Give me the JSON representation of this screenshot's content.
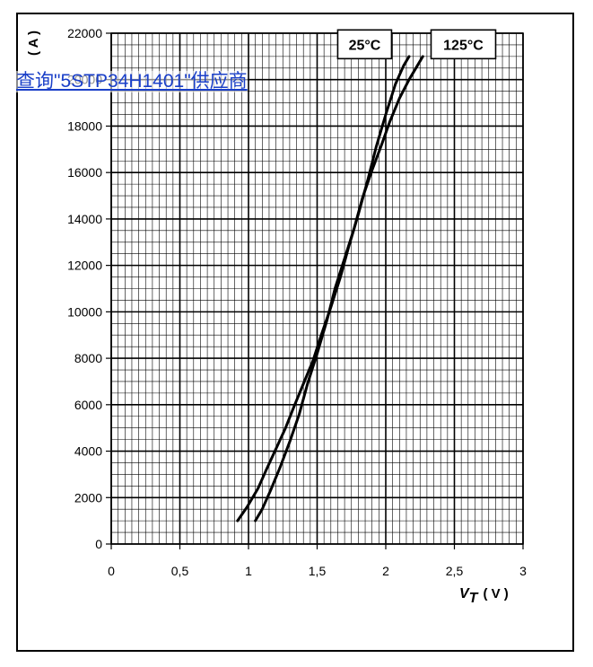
{
  "overlay": {
    "link_text": "查询\"5STP34H1401\"供应商"
  },
  "chart_data": {
    "type": "line",
    "title": "",
    "xlabel_main": "V",
    "xlabel_sub": "T",
    "xlabel_unit": "( V )",
    "ylabel": "( A )",
    "xlim": [
      0,
      3
    ],
    "ylim": [
      0,
      22000
    ],
    "xticks": [
      "0",
      "0,5",
      "1",
      "1,5",
      "2",
      "2,5",
      "3"
    ],
    "xtick_values": [
      0,
      0.5,
      1,
      1.5,
      2,
      2.5,
      3
    ],
    "yticks": [
      "0",
      "2000",
      "4000",
      "6000",
      "8000",
      "10000",
      "12000",
      "14000",
      "16000",
      "18000",
      "20000",
      "22000"
    ],
    "ytick_values": [
      0,
      2000,
      4000,
      6000,
      8000,
      10000,
      12000,
      14000,
      16000,
      18000,
      20000,
      22000
    ],
    "grid": true,
    "series": [
      {
        "name": "25°C",
        "color": "#000000",
        "x": [
          0.92,
          0.99,
          1.07,
          1.13,
          1.2,
          1.27,
          1.33,
          1.4,
          1.47,
          1.53,
          1.6,
          1.67,
          1.73,
          1.8,
          1.87,
          1.93,
          2.0,
          2.07,
          2.13,
          2.17
        ],
        "y": [
          1000,
          1600,
          2400,
          3200,
          4100,
          5000,
          5900,
          6900,
          7900,
          9000,
          10200,
          11500,
          12800,
          14200,
          15700,
          17100,
          18500,
          19800,
          20600,
          21000
        ]
      },
      {
        "name": "125°C",
        "color": "#000000",
        "x": [
          1.05,
          1.1,
          1.16,
          1.23,
          1.3,
          1.37,
          1.43,
          1.5,
          1.57,
          1.63,
          1.7,
          1.77,
          1.83,
          1.9,
          1.97,
          2.03,
          2.1,
          2.17,
          2.23,
          2.27
        ],
        "y": [
          1000,
          1500,
          2300,
          3300,
          4400,
          5600,
          6900,
          8200,
          9600,
          11000,
          12300,
          13600,
          14900,
          16100,
          17200,
          18200,
          19200,
          20000,
          20600,
          21000
        ]
      }
    ],
    "labels": [
      {
        "text": "25°C",
        "series": 0
      },
      {
        "text": "125°C",
        "series": 1
      }
    ]
  }
}
